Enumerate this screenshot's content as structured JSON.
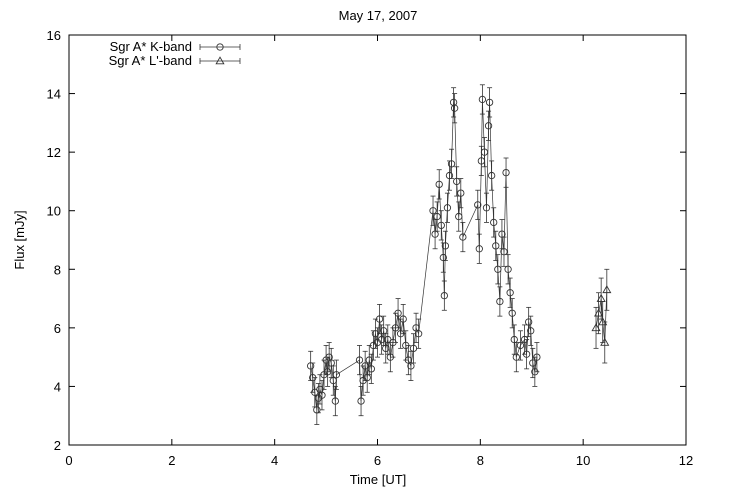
{
  "chart_data": {
    "type": "scatter",
    "title": "May 17, 2007",
    "xlabel": "Time [UT]",
    "ylabel": "Flux [mJy]",
    "xlim": [
      0,
      12
    ],
    "ylim": [
      2,
      16
    ],
    "xticks": [
      "0",
      "2",
      "4",
      "6",
      "8",
      "10",
      "12"
    ],
    "yticks": [
      "2",
      "4",
      "6",
      "8",
      "10",
      "12",
      "14",
      "16"
    ],
    "grid": false,
    "legend_position": "top-left",
    "series": [
      {
        "name": "Sgr A* K-band",
        "marker": "circle",
        "line": true,
        "points": [
          [
            4.7,
            4.7,
            0.5
          ],
          [
            4.74,
            4.3,
            0.5
          ],
          [
            4.78,
            3.8,
            0.5
          ],
          [
            4.82,
            3.2,
            0.5
          ],
          [
            4.85,
            3.6,
            0.5
          ],
          [
            4.88,
            3.9,
            0.5
          ],
          [
            4.92,
            3.7,
            0.5
          ],
          [
            4.96,
            4.4,
            0.5
          ],
          [
            5.0,
            4.9,
            0.5
          ],
          [
            5.03,
            4.5,
            0.5
          ],
          [
            5.06,
            5.0,
            0.5
          ],
          [
            5.1,
            4.8,
            0.5
          ],
          [
            5.14,
            4.2,
            0.5
          ],
          [
            5.18,
            3.5,
            0.5
          ],
          [
            5.2,
            4.4,
            0.5
          ],
          [
            5.65,
            4.9,
            0.5
          ],
          [
            5.68,
            3.5,
            0.5
          ],
          [
            5.72,
            4.2,
            0.5
          ],
          [
            5.76,
            4.7,
            0.5
          ],
          [
            5.8,
            4.3,
            0.5
          ],
          [
            5.84,
            4.9,
            0.5
          ],
          [
            5.88,
            4.6,
            0.5
          ],
          [
            5.92,
            5.4,
            0.5
          ],
          [
            5.96,
            5.8,
            0.5
          ],
          [
            6.0,
            5.5,
            0.5
          ],
          [
            6.04,
            6.3,
            0.5
          ],
          [
            6.08,
            5.6,
            0.5
          ],
          [
            6.12,
            5.9,
            0.5
          ],
          [
            6.16,
            5.3,
            0.5
          ],
          [
            6.2,
            5.6,
            0.5
          ],
          [
            6.25,
            5.0,
            0.5
          ],
          [
            6.3,
            5.5,
            0.5
          ],
          [
            6.35,
            6.0,
            0.5
          ],
          [
            6.4,
            6.5,
            0.5
          ],
          [
            6.45,
            5.8,
            0.5
          ],
          [
            6.5,
            6.3,
            0.5
          ],
          [
            6.55,
            5.4,
            0.5
          ],
          [
            6.6,
            4.9,
            0.5
          ],
          [
            6.65,
            4.7,
            0.5
          ],
          [
            6.7,
            5.3,
            0.5
          ],
          [
            6.75,
            6.0,
            0.5
          ],
          [
            6.8,
            5.8,
            0.5
          ],
          [
            7.08,
            10.0,
            0.5
          ],
          [
            7.12,
            9.2,
            0.5
          ],
          [
            7.16,
            9.8,
            0.5
          ],
          [
            7.2,
            10.9,
            0.5
          ],
          [
            7.24,
            9.5,
            0.5
          ],
          [
            7.28,
            8.4,
            0.5
          ],
          [
            7.3,
            7.1,
            0.5
          ],
          [
            7.32,
            8.8,
            0.5
          ],
          [
            7.36,
            10.1,
            0.5
          ],
          [
            7.4,
            11.2,
            0.5
          ],
          [
            7.44,
            11.6,
            0.5
          ],
          [
            7.48,
            13.7,
            0.5
          ],
          [
            7.5,
            13.5,
            0.5
          ],
          [
            7.54,
            11.0,
            0.5
          ],
          [
            7.58,
            9.8,
            0.5
          ],
          [
            7.62,
            10.6,
            0.5
          ],
          [
            7.66,
            9.1,
            0.5
          ],
          [
            7.95,
            10.2,
            0.5
          ],
          [
            7.98,
            8.7,
            0.5
          ],
          [
            8.02,
            11.7,
            0.5
          ],
          [
            8.04,
            13.8,
            0.5
          ],
          [
            8.08,
            12.0,
            0.5
          ],
          [
            8.12,
            10.1,
            0.5
          ],
          [
            8.16,
            12.9,
            0.5
          ],
          [
            8.18,
            13.7,
            0.5
          ],
          [
            8.22,
            11.2,
            0.5
          ],
          [
            8.26,
            9.6,
            0.5
          ],
          [
            8.3,
            8.8,
            0.5
          ],
          [
            8.34,
            8.0,
            0.5
          ],
          [
            8.38,
            6.9,
            0.5
          ],
          [
            8.42,
            9.2,
            0.5
          ],
          [
            8.46,
            8.6,
            0.5
          ],
          [
            8.5,
            11.3,
            0.5
          ],
          [
            8.54,
            8.0,
            0.5
          ],
          [
            8.58,
            7.2,
            0.5
          ],
          [
            8.62,
            6.5,
            0.5
          ],
          [
            8.66,
            5.6,
            0.5
          ],
          [
            8.7,
            5.0,
            0.5
          ],
          [
            8.78,
            5.4,
            0.5
          ],
          [
            8.86,
            5.6,
            0.5
          ],
          [
            8.9,
            5.1,
            0.5
          ],
          [
            8.94,
            6.2,
            0.5
          ],
          [
            8.98,
            5.9,
            0.5
          ],
          [
            9.02,
            4.8,
            0.5
          ],
          [
            9.06,
            4.5,
            0.5
          ],
          [
            9.1,
            5.0,
            0.5
          ]
        ]
      },
      {
        "name": "Sgr A* L'-band",
        "marker": "triangle",
        "line": true,
        "points": [
          [
            10.25,
            6.0,
            0.7
          ],
          [
            10.3,
            6.5,
            0.7
          ],
          [
            10.35,
            7.0,
            0.7
          ],
          [
            10.38,
            6.2,
            0.7
          ],
          [
            10.42,
            5.5,
            0.7
          ],
          [
            10.46,
            7.3,
            0.7
          ]
        ]
      }
    ]
  }
}
